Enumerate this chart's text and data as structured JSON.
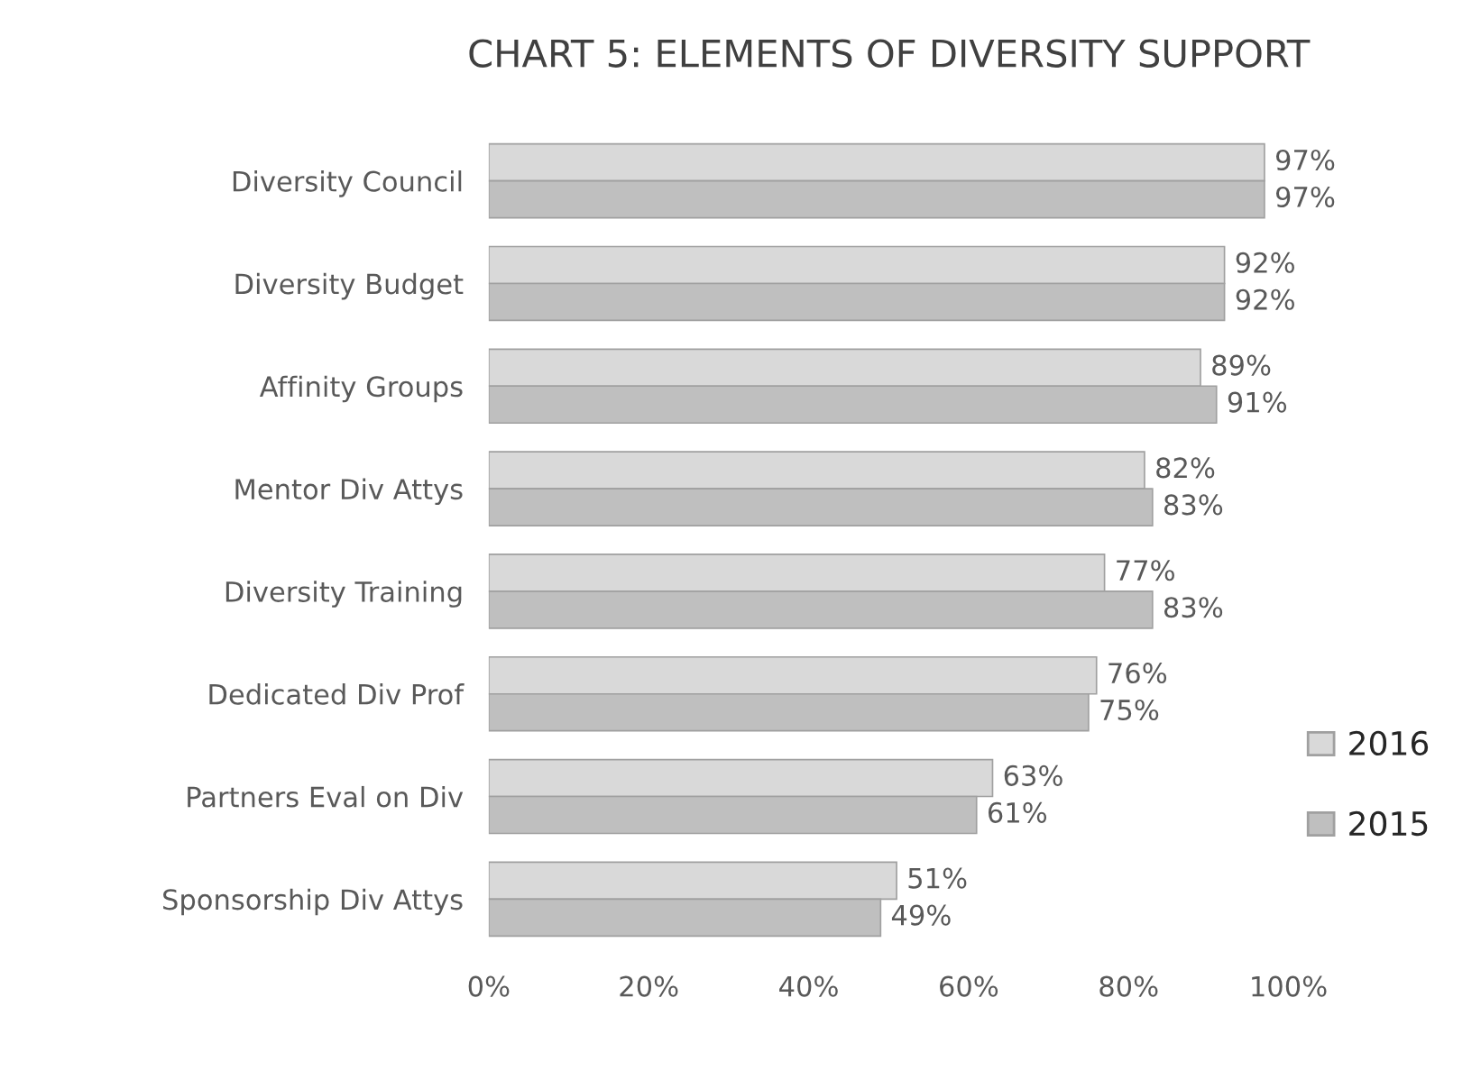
{
  "chart_data": {
    "type": "bar",
    "orientation": "horizontal",
    "title": "CHART 5: ELEMENTS OF DIVERSITY SUPPORT",
    "categories": [
      "Diversity Council",
      "Diversity Budget",
      "Affinity Groups",
      "Mentor Div Attys",
      "Diversity Training",
      "Dedicated Div Prof",
      "Partners Eval on Div",
      "Sponsorship Div Attys"
    ],
    "series": [
      {
        "name": "2016",
        "color": "#d9d9d9",
        "values": [
          97,
          92,
          89,
          82,
          77,
          76,
          63,
          51
        ],
        "value_labels": [
          "97%",
          "92%",
          "89%",
          "82%",
          "77%",
          "76%",
          "63%",
          "51%"
        ]
      },
      {
        "name": "2015",
        "color": "#bfbfbf",
        "values": [
          97,
          92,
          91,
          83,
          83,
          75,
          61,
          49
        ],
        "value_labels": [
          "97%",
          "92%",
          "91%",
          "83%",
          "83%",
          "75%",
          "61%",
          "49%"
        ]
      }
    ],
    "xlim": [
      0,
      100
    ],
    "xticks": [
      {
        "value": 0,
        "label": "0%"
      },
      {
        "value": 20,
        "label": "20%"
      },
      {
        "value": 40,
        "label": "40%"
      },
      {
        "value": 60,
        "label": "60%"
      },
      {
        "value": 80,
        "label": "80%"
      },
      {
        "value": 100,
        "label": "100%"
      }
    ],
    "legend": "right",
    "grid": false
  }
}
